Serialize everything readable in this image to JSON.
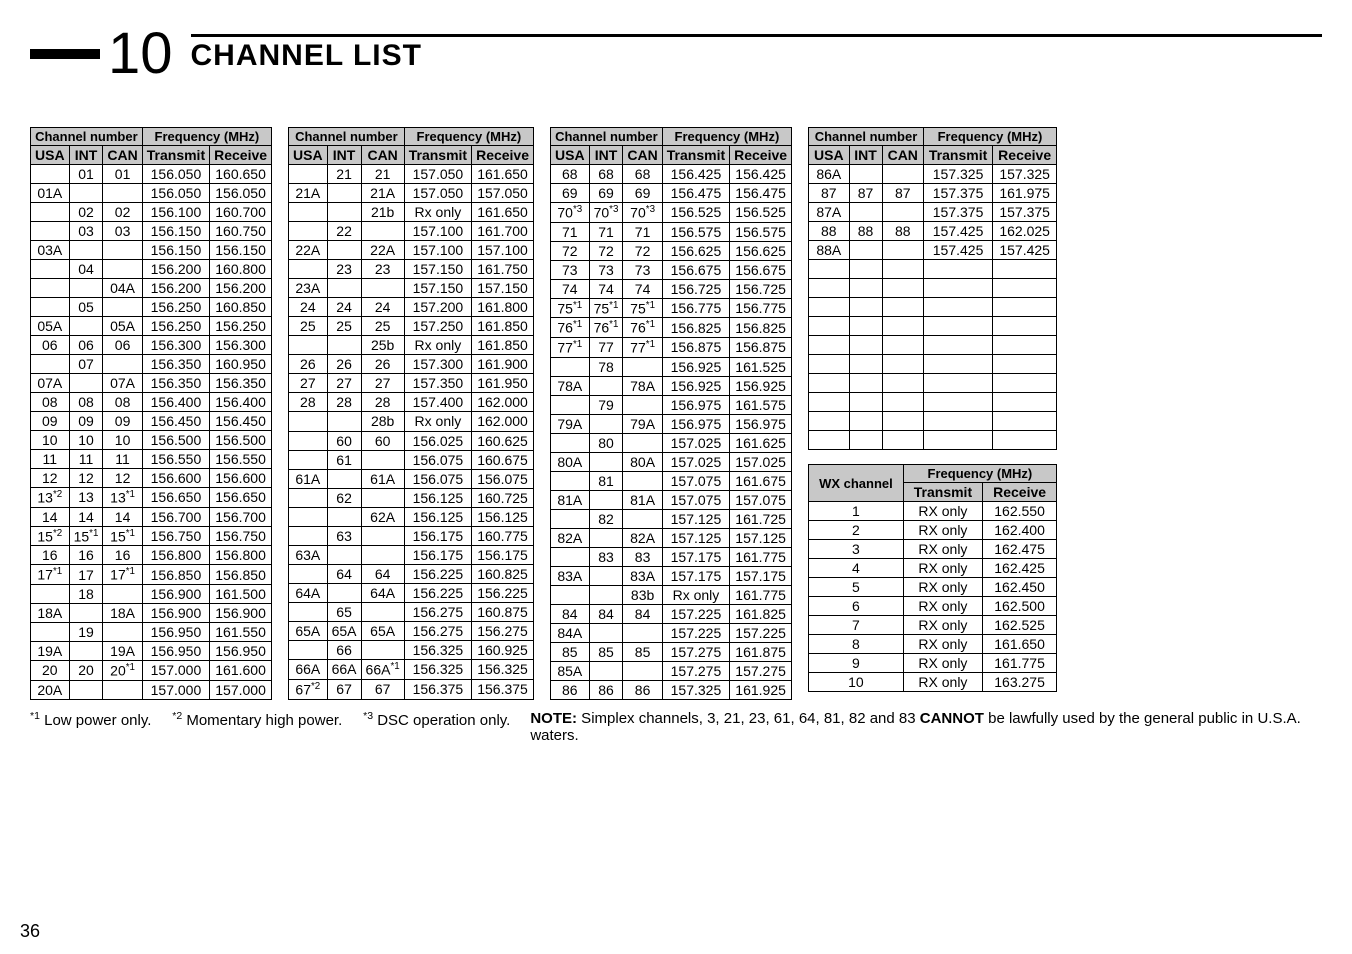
{
  "header": {
    "chapter_number": "10",
    "chapter_title": "CHANNEL LIST"
  },
  "page_number": "36",
  "table_headers": {
    "group1": "Channel number",
    "group2": "Frequency (MHz)",
    "usa": "USA",
    "int": "INT",
    "can": "CAN",
    "tx": "Transmit",
    "rx": "Receive"
  },
  "wx_headers": {
    "wx": "WX channel",
    "freq": "Frequency (MHz)",
    "tx": "Transmit",
    "rx": "Receive"
  },
  "table1": [
    [
      "",
      "01",
      "01",
      "156.050",
      "160.650"
    ],
    [
      "01A",
      "",
      "",
      "156.050",
      "156.050"
    ],
    [
      "",
      "02",
      "02",
      "156.100",
      "160.700"
    ],
    [
      "",
      "03",
      "03",
      "156.150",
      "160.750"
    ],
    [
      "03A",
      "",
      "",
      "156.150",
      "156.150"
    ],
    [
      "",
      "04",
      "",
      "156.200",
      "160.800"
    ],
    [
      "",
      "",
      "04A",
      "156.200",
      "156.200"
    ],
    [
      "",
      "05",
      "",
      "156.250",
      "160.850"
    ],
    [
      "05A",
      "",
      "05A",
      "156.250",
      "156.250"
    ],
    [
      "06",
      "06",
      "06",
      "156.300",
      "156.300"
    ],
    [
      "",
      "07",
      "",
      "156.350",
      "160.950"
    ],
    [
      "07A",
      "",
      "07A",
      "156.350",
      "156.350"
    ],
    [
      "08",
      "08",
      "08",
      "156.400",
      "156.400"
    ],
    [
      "09",
      "09",
      "09",
      "156.450",
      "156.450"
    ],
    [
      "10",
      "10",
      "10",
      "156.500",
      "156.500"
    ],
    [
      "11",
      "11",
      "11",
      "156.550",
      "156.550"
    ],
    [
      "12",
      "12",
      "12",
      "156.600",
      "156.600"
    ],
    [
      "13*2",
      "13",
      "13*1",
      "156.650",
      "156.650"
    ],
    [
      "14",
      "14",
      "14",
      "156.700",
      "156.700"
    ],
    [
      "15*2",
      "15*1",
      "15*1",
      "156.750",
      "156.750"
    ],
    [
      "16",
      "16",
      "16",
      "156.800",
      "156.800"
    ],
    [
      "17*1",
      "17",
      "17*1",
      "156.850",
      "156.850"
    ],
    [
      "",
      "18",
      "",
      "156.900",
      "161.500"
    ],
    [
      "18A",
      "",
      "18A",
      "156.900",
      "156.900"
    ],
    [
      "",
      "19",
      "",
      "156.950",
      "161.550"
    ],
    [
      "19A",
      "",
      "19A",
      "156.950",
      "156.950"
    ],
    [
      "20",
      "20",
      "20*1",
      "157.000",
      "161.600"
    ],
    [
      "20A",
      "",
      "",
      "157.000",
      "157.000"
    ]
  ],
  "table2": [
    [
      "",
      "21",
      "21",
      "157.050",
      "161.650"
    ],
    [
      "21A",
      "",
      "21A",
      "157.050",
      "157.050"
    ],
    [
      "",
      "",
      "21b",
      "Rx only",
      "161.650"
    ],
    [
      "",
      "22",
      "",
      "157.100",
      "161.700"
    ],
    [
      "22A",
      "",
      "22A",
      "157.100",
      "157.100"
    ],
    [
      "",
      "23",
      "23",
      "157.150",
      "161.750"
    ],
    [
      "23A",
      "",
      "",
      "157.150",
      "157.150"
    ],
    [
      "24",
      "24",
      "24",
      "157.200",
      "161.800"
    ],
    [
      "25",
      "25",
      "25",
      "157.250",
      "161.850"
    ],
    [
      "",
      "",
      "25b",
      "Rx only",
      "161.850"
    ],
    [
      "26",
      "26",
      "26",
      "157.300",
      "161.900"
    ],
    [
      "27",
      "27",
      "27",
      "157.350",
      "161.950"
    ],
    [
      "28",
      "28",
      "28",
      "157.400",
      "162.000"
    ],
    [
      "",
      "",
      "28b",
      "Rx only",
      "162.000"
    ],
    [
      "",
      "60",
      "60",
      "156.025",
      "160.625"
    ],
    [
      "",
      "61",
      "",
      "156.075",
      "160.675"
    ],
    [
      "61A",
      "",
      "61A",
      "156.075",
      "156.075"
    ],
    [
      "",
      "62",
      "",
      "156.125",
      "160.725"
    ],
    [
      "",
      "",
      "62A",
      "156.125",
      "156.125"
    ],
    [
      "",
      "63",
      "",
      "156.175",
      "160.775"
    ],
    [
      "63A",
      "",
      "",
      "156.175",
      "156.175"
    ],
    [
      "",
      "64",
      "64",
      "156.225",
      "160.825"
    ],
    [
      "64A",
      "",
      "64A",
      "156.225",
      "156.225"
    ],
    [
      "",
      "65",
      "",
      "156.275",
      "160.875"
    ],
    [
      "65A",
      "65A",
      "65A",
      "156.275",
      "156.275"
    ],
    [
      "",
      "66",
      "",
      "156.325",
      "160.925"
    ],
    [
      "66A",
      "66A",
      "66A*1",
      "156.325",
      "156.325"
    ],
    [
      "67*2",
      "67",
      "67",
      "156.375",
      "156.375"
    ]
  ],
  "table3": [
    [
      "68",
      "68",
      "68",
      "156.425",
      "156.425"
    ],
    [
      "69",
      "69",
      "69",
      "156.475",
      "156.475"
    ],
    [
      "70*3",
      "70*3",
      "70*3",
      "156.525",
      "156.525"
    ],
    [
      "71",
      "71",
      "71",
      "156.575",
      "156.575"
    ],
    [
      "72",
      "72",
      "72",
      "156.625",
      "156.625"
    ],
    [
      "73",
      "73",
      "73",
      "156.675",
      "156.675"
    ],
    [
      "74",
      "74",
      "74",
      "156.725",
      "156.725"
    ],
    [
      "75*1",
      "75*1",
      "75*1",
      "156.775",
      "156.775"
    ],
    [
      "76*1",
      "76*1",
      "76*1",
      "156.825",
      "156.825"
    ],
    [
      "77*1",
      "77",
      "77*1",
      "156.875",
      "156.875"
    ],
    [
      "",
      "78",
      "",
      "156.925",
      "161.525"
    ],
    [
      "78A",
      "",
      "78A",
      "156.925",
      "156.925"
    ],
    [
      "",
      "79",
      "",
      "156.975",
      "161.575"
    ],
    [
      "79A",
      "",
      "79A",
      "156.975",
      "156.975"
    ],
    [
      "",
      "80",
      "",
      "157.025",
      "161.625"
    ],
    [
      "80A",
      "",
      "80A",
      "157.025",
      "157.025"
    ],
    [
      "",
      "81",
      "",
      "157.075",
      "161.675"
    ],
    [
      "81A",
      "",
      "81A",
      "157.075",
      "157.075"
    ],
    [
      "",
      "82",
      "",
      "157.125",
      "161.725"
    ],
    [
      "82A",
      "",
      "82A",
      "157.125",
      "157.125"
    ],
    [
      "",
      "83",
      "83",
      "157.175",
      "161.775"
    ],
    [
      "83A",
      "",
      "83A",
      "157.175",
      "157.175"
    ],
    [
      "",
      "",
      "83b",
      "Rx only",
      "161.775"
    ],
    [
      "84",
      "84",
      "84",
      "157.225",
      "161.825"
    ],
    [
      "84A",
      "",
      "",
      "157.225",
      "157.225"
    ],
    [
      "85",
      "85",
      "85",
      "157.275",
      "161.875"
    ],
    [
      "85A",
      "",
      "",
      "157.275",
      "157.275"
    ],
    [
      "86",
      "86",
      "86",
      "157.325",
      "161.925"
    ]
  ],
  "table4": [
    [
      "86A",
      "",
      "",
      "157.325",
      "157.325"
    ],
    [
      "87",
      "87",
      "87",
      "157.375",
      "161.975"
    ],
    [
      "87A",
      "",
      "",
      "157.375",
      "157.375"
    ],
    [
      "88",
      "88",
      "88",
      "157.425",
      "162.025"
    ],
    [
      "88A",
      "",
      "",
      "157.425",
      "157.425"
    ],
    [
      "",
      "",
      "",
      "",
      ""
    ],
    [
      "",
      "",
      "",
      "",
      ""
    ],
    [
      "",
      "",
      "",
      "",
      ""
    ],
    [
      "",
      "",
      "",
      "",
      ""
    ],
    [
      "",
      "",
      "",
      "",
      ""
    ],
    [
      "",
      "",
      "",
      "",
      ""
    ],
    [
      "",
      "",
      "",
      "",
      ""
    ],
    [
      "",
      "",
      "",
      "",
      ""
    ],
    [
      "",
      "",
      "",
      "",
      ""
    ],
    [
      "",
      "",
      "",
      "",
      ""
    ]
  ],
  "wx_table": [
    [
      "1",
      "RX only",
      "162.550"
    ],
    [
      "2",
      "RX only",
      "162.400"
    ],
    [
      "3",
      "RX only",
      "162.475"
    ],
    [
      "4",
      "RX only",
      "162.425"
    ],
    [
      "5",
      "RX only",
      "162.450"
    ],
    [
      "6",
      "RX only",
      "162.500"
    ],
    [
      "7",
      "RX only",
      "162.525"
    ],
    [
      "8",
      "RX only",
      "161.650"
    ],
    [
      "9",
      "RX only",
      "161.775"
    ],
    [
      "10",
      "RX only",
      "163.275"
    ]
  ],
  "footnotes": {
    "f1_label": "*1",
    "f1_text": "Low power only.",
    "f2_label": "*2",
    "f2_text": "Momentary high power.",
    "f3_label": "*3",
    "f3_text": "DSC operation only.",
    "note_label": "NOTE:",
    "note_text": " Simplex channels, 3, 21, 23, 61, 64, 81, 82 and 83 ",
    "note_bold": "CANNOT",
    "note_tail": " be lawfully used by the general public in U.S.A. waters."
  },
  "style": {
    "header_bg": "#c8c8c8",
    "border_color": "#000000",
    "font_size_table": 14,
    "font_size_footnotes": 15,
    "chapter_num_size": 58,
    "chapter_title_size": 30
  }
}
